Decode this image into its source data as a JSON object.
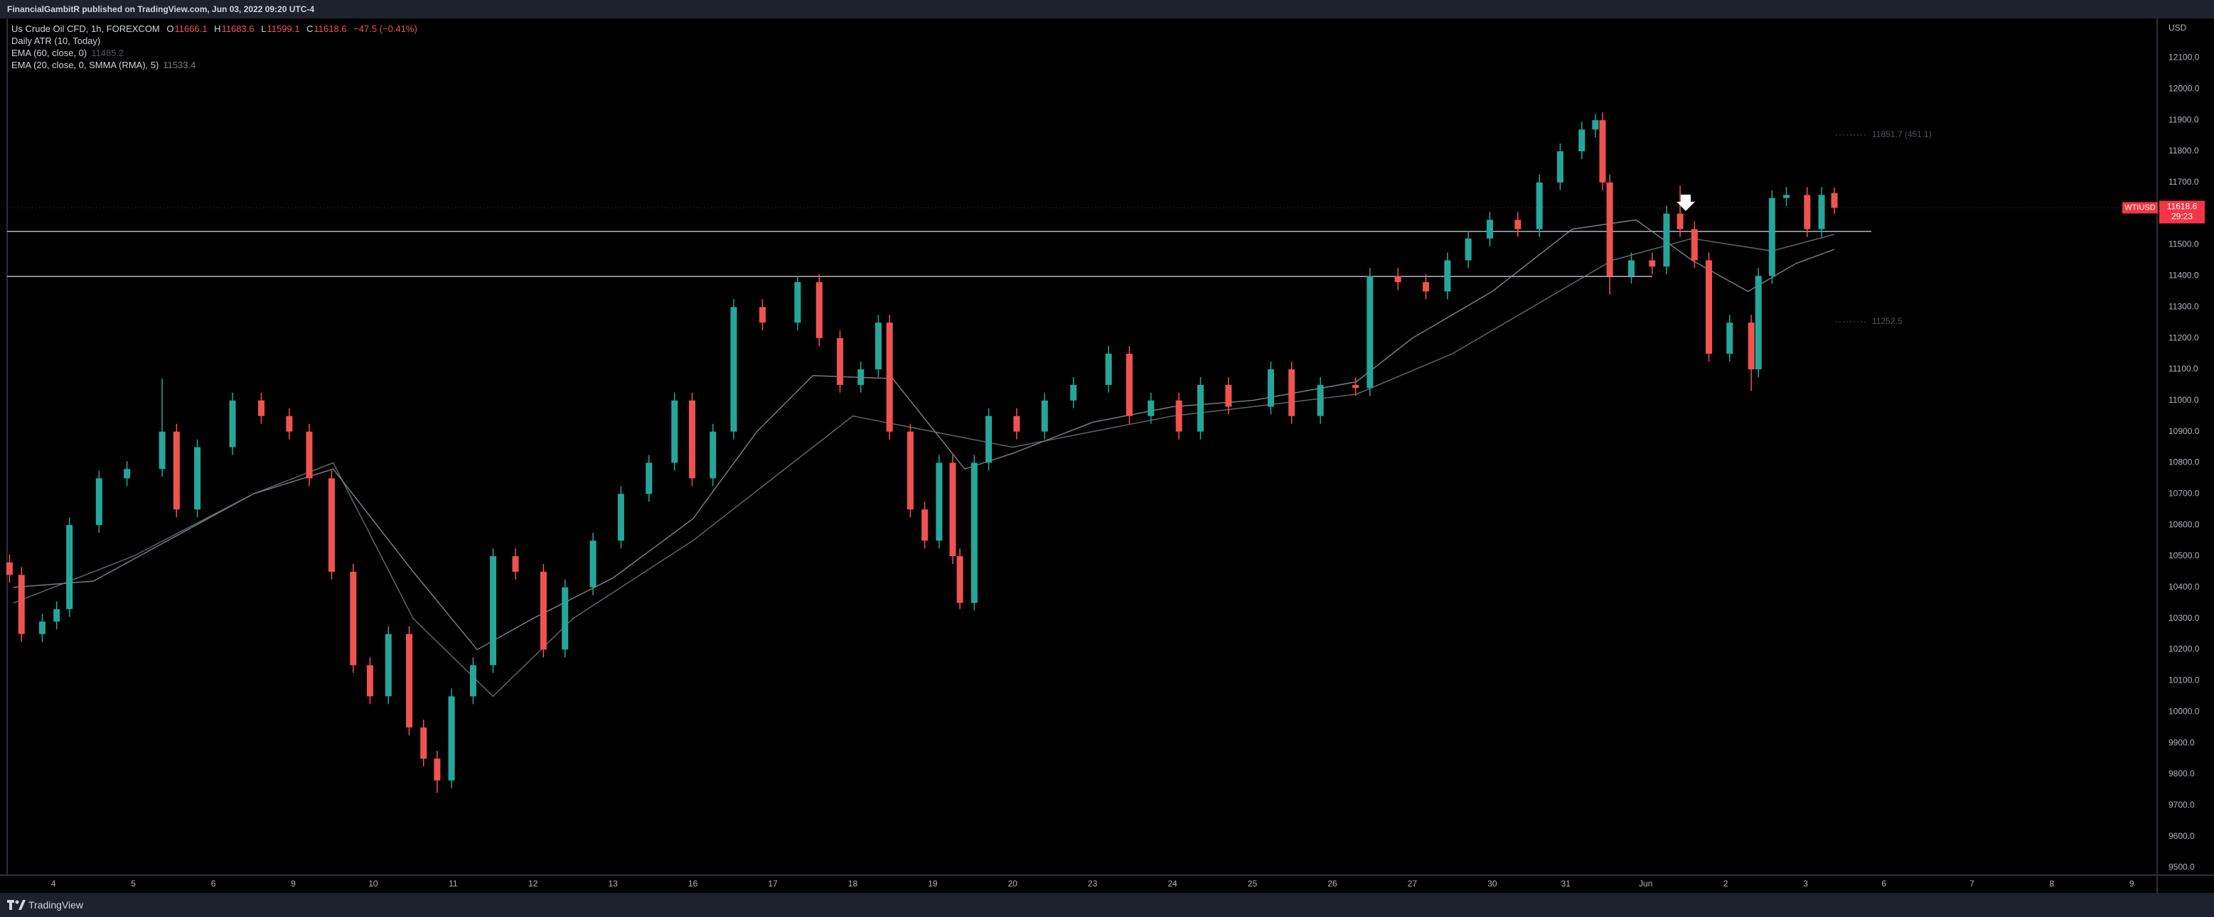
{
  "top_bar": {
    "text": "FinancialGambitR published on TradingView.com, Jun 03, 2022 09:20 UTC-4"
  },
  "bottom_bar": {
    "brand": "TradingView"
  },
  "chart_data": {
    "type": "candlestick",
    "title": "Us Crude Oil CFD, 1h, FOREXCOM",
    "ohlc": [
      {
        "label": "O",
        "value": 11666.1
      },
      {
        "label": "H",
        "value": 11683.6
      },
      {
        "label": "L",
        "value": 11599.1
      },
      {
        "label": "C",
        "value": 11618.6
      }
    ],
    "change": "−47.5 (−0.41%)",
    "indicator": "Daily ATR (10, Today)",
    "atr_levels": [
      "11851.7 (451.1)",
      "11252.5"
    ],
    "currency": "USD",
    "symbol": "WTIUSD",
    "last_price": 11618.6,
    "countdown": "29:23",
    "up_color": "#26a69a",
    "down_color": "#ef5350",
    "x": [
      -0.55,
      -0.4,
      -0.14,
      0.04,
      0.2,
      0.57,
      0.92,
      1.36,
      1.54,
      1.8,
      2.24,
      2.6,
      2.95,
      3.2,
      3.48,
      3.75,
      3.96,
      4.19,
      4.45,
      4.63,
      4.8,
      4.98,
      5.25,
      5.5,
      5.78,
      6.13,
      6.4,
      6.75,
      7.1,
      7.45,
      7.77,
      7.99,
      8.25,
      8.51,
      8.87,
      9.31,
      9.58,
      9.84,
      10.1,
      10.32,
      10.46,
      10.72,
      10.9,
      11.08,
      11.25,
      11.34,
      11.52,
      11.7,
      12.05,
      12.4,
      12.76,
      13.2,
      13.46,
      13.73,
      14.08,
      14.35,
      14.7,
      15.23,
      15.49,
      15.85,
      16.29,
      16.47,
      16.82,
      17.17,
      17.44,
      17.7,
      17.97,
      18.32,
      18.59,
      18.85,
      19.12,
      19.29,
      19.38,
      19.47,
      19.74,
      20.0,
      20.18,
      20.35,
      20.53,
      20.71,
      20.97,
      21.24,
      21.33,
      21.5,
      21.68,
      21.94,
      22.12,
      22.28
    ],
    "open": [
      10480,
      10440,
      10250,
      10290,
      10330,
      10600,
      10750,
      10780,
      10900,
      10650,
      10850,
      11000,
      10950,
      10900,
      10750,
      10450,
      10150,
      10050,
      10250,
      9950,
      9850,
      9780,
      10050,
      10150,
      10500,
      10450,
      10200,
      10400,
      10550,
      10700,
      10800,
      11000,
      10750,
      10900,
      11300,
      11250,
      11380,
      11200,
      11050,
      11100,
      11250,
      10900,
      10650,
      10550,
      10800,
      10500,
      10350,
      10800,
      10950,
      10900,
      11000,
      11050,
      11150,
      10950,
      11000,
      10900,
      11050,
      10980,
      11100,
      10950,
      11050,
      11040,
      11400,
      11380,
      11350,
      11450,
      11520,
      11580,
      11550,
      11700,
      11800,
      11870,
      11900,
      11700,
      11400,
      11450,
      11430,
      11600,
      11550,
      11450,
      11150,
      11250,
      11100,
      11400,
      11650,
      11660,
      11550,
      11666.1
    ],
    "high": [
      10505,
      10465,
      10315,
      10355,
      10625,
      10775,
      10805,
      11070,
      10925,
      10875,
      11025,
      11025,
      10975,
      10925,
      10775,
      10475,
      10175,
      10275,
      10275,
      9975,
      9875,
      10075,
      10175,
      10525,
      10525,
      10475,
      10425,
      10575,
      10725,
      10825,
      11025,
      11025,
      10925,
      11325,
      11325,
      11400,
      11405,
      11225,
      11125,
      11275,
      11275,
      10925,
      10675,
      10825,
      10825,
      10525,
      10825,
      10975,
      10975,
      11025,
      11075,
      11175,
      11175,
      11025,
      11025,
      11075,
      11075,
      11125,
      11125,
      11075,
      11075,
      11425,
      11425,
      11405,
      11475,
      11545,
      11605,
      11605,
      11725,
      11825,
      11895,
      11920,
      11925,
      11725,
      11475,
      11475,
      11625,
      11690,
      11575,
      11475,
      11275,
      11275,
      11425,
      11675,
      11685,
      11685,
      11685,
      11683.6
    ],
    "low": [
      10415,
      10225,
      10225,
      10265,
      10305,
      10575,
      10725,
      10755,
      10625,
      10625,
      10825,
      10925,
      10875,
      10725,
      10425,
      10125,
      10025,
      10025,
      9925,
      9825,
      9740,
      9755,
      10025,
      10125,
      10425,
      10175,
      10175,
      10375,
      10525,
      10675,
      10775,
      10725,
      10725,
      10875,
      11225,
      11225,
      11175,
      11025,
      11025,
      11075,
      10875,
      10625,
      10525,
      10525,
      10475,
      10330,
      10325,
      10775,
      10875,
      10875,
      10975,
      11025,
      10925,
      10925,
      10875,
      10875,
      10955,
      10955,
      10925,
      10925,
      11015,
      11015,
      11355,
      11325,
      11325,
      11425,
      11495,
      11525,
      11525,
      11675,
      11775,
      11845,
      11675,
      11340,
      11375,
      11405,
      11405,
      11525,
      11425,
      11125,
      11125,
      11030,
      11075,
      11375,
      11625,
      11525,
      11525,
      11599.1
    ],
    "close": [
      10440,
      10250,
      10290,
      10330,
      10600,
      10750,
      10780,
      10900,
      10650,
      10850,
      11000,
      10950,
      10900,
      10750,
      10450,
      10150,
      10050,
      10250,
      9950,
      9850,
      9780,
      10050,
      10150,
      10500,
      10450,
      10200,
      10400,
      10550,
      10700,
      10800,
      11000,
      10750,
      10900,
      11300,
      11250,
      11380,
      11200,
      11050,
      11100,
      11250,
      10900,
      10650,
      10550,
      10800,
      10500,
      10350,
      10800,
      10950,
      10900,
      11000,
      11050,
      11150,
      10950,
      11000,
      10900,
      11050,
      10980,
      11100,
      10950,
      11050,
      11040,
      11400,
      11380,
      11350,
      11450,
      11520,
      11580,
      11550,
      11700,
      11800,
      11870,
      11900,
      11700,
      11400,
      11450,
      11430,
      11600,
      11550,
      11450,
      11150,
      11250,
      11100,
      11400,
      11650,
      11660,
      11550,
      11660,
      11618.6
    ],
    "series": [
      {
        "name": "EMA (60, close, 0)",
        "color": "#9598a1",
        "last": 11485.2,
        "x": [
          -0.5,
          0.5,
          1.5,
          2.5,
          3.5,
          4.5,
          5.3,
          6,
          7,
          8,
          8.8,
          9.5,
          10.5,
          11.4,
          12,
          13,
          14,
          15,
          16.3,
          17,
          18,
          19,
          19.8,
          20.5,
          21.2,
          21.8,
          22.28
        ],
        "values": [
          10400,
          10420,
          10560,
          10700,
          10780,
          10450,
          10200,
          10300,
          10430,
          10620,
          10900,
          11080,
          11070,
          10780,
          10830,
          10930,
          10980,
          11000,
          11060,
          11200,
          11350,
          11550,
          11580,
          11450,
          11350,
          11440,
          11485.2
        ]
      },
      {
        "name": "EMA (20, close, 0, SMMA (RMA), 5)",
        "color": "#787b86",
        "last": 11533.4,
        "x": [
          -0.5,
          1,
          2.5,
          3.5,
          4.5,
          5.5,
          6.5,
          8,
          9,
          10,
          11,
          12,
          13,
          14,
          15,
          16.3,
          17.5,
          18.5,
          19.5,
          20.5,
          21.5,
          22.28
        ],
        "values": [
          10350,
          10500,
          10700,
          10800,
          10300,
          10050,
          10300,
          10550,
          10750,
          10950,
          10900,
          10850,
          10900,
          10950,
          10980,
          11020,
          11150,
          11300,
          11450,
          11520,
          11480,
          11533.4
        ]
      }
    ],
    "xlim": [
      -0.58,
      26.3
    ],
    "xticks": [
      {
        "value": 0,
        "label": "4"
      },
      {
        "value": 1,
        "label": "5"
      },
      {
        "value": 2,
        "label": "6"
      },
      {
        "value": 3,
        "label": "9"
      },
      {
        "value": 4,
        "label": "10"
      },
      {
        "value": 5,
        "label": "11"
      },
      {
        "value": 6,
        "label": "12"
      },
      {
        "value": 7,
        "label": "13"
      },
      {
        "value": 8,
        "label": "16"
      },
      {
        "value": 9,
        "label": "17"
      },
      {
        "value": 10,
        "label": "18"
      },
      {
        "value": 11,
        "label": "19"
      },
      {
        "value": 12,
        "label": "20"
      },
      {
        "value": 13,
        "label": "23"
      },
      {
        "value": 14,
        "label": "24"
      },
      {
        "value": 15,
        "label": "25"
      },
      {
        "value": 16,
        "label": "26"
      },
      {
        "value": 17,
        "label": "27"
      },
      {
        "value": 18,
        "label": "30"
      },
      {
        "value": 18.92,
        "label": "31"
      },
      {
        "value": 19.92,
        "label": "Jun"
      },
      {
        "value": 20.92,
        "label": "2"
      },
      {
        "value": 21.92,
        "label": "3"
      },
      {
        "value": 22.9,
        "label": "6"
      },
      {
        "value": 24,
        "label": "7"
      },
      {
        "value": 25,
        "label": "8"
      },
      {
        "value": 26,
        "label": "9"
      }
    ],
    "ylim": [
      9476,
      12222
    ],
    "yticks": [
      {
        "value": 12100,
        "label": "12100.0"
      },
      {
        "value": 12000,
        "label": "12000.0"
      },
      {
        "value": 11900,
        "label": "11900.0"
      },
      {
        "value": 11800,
        "label": "11800.0"
      },
      {
        "value": 11700,
        "label": "11700.0"
      },
      {
        "value": 11600,
        "label": "11600.0"
      },
      {
        "value": 11500,
        "label": "11500.0"
      },
      {
        "value": 11400,
        "label": "11400.0"
      },
      {
        "value": 11300,
        "label": "11300.0"
      },
      {
        "value": 11200,
        "label": "11200.0"
      },
      {
        "value": 11100,
        "label": "11100.0"
      },
      {
        "value": 11000,
        "label": "11000.0"
      },
      {
        "value": 10900,
        "label": "10900.0"
      },
      {
        "value": 10800,
        "label": "10800.0"
      },
      {
        "value": 10700,
        "label": "10700.0"
      },
      {
        "value": 10600,
        "label": "10600.0"
      },
      {
        "value": 10500,
        "label": "10500.0"
      },
      {
        "value": 10400,
        "label": "10400.0"
      },
      {
        "value": 10300,
        "label": "10300.0"
      },
      {
        "value": 10200,
        "label": "10200.0"
      },
      {
        "value": 10100,
        "label": "10100.0"
      },
      {
        "value": 10000,
        "label": "10000.0"
      },
      {
        "value": 9900,
        "label": "9900.0"
      },
      {
        "value": 9800,
        "label": "9800.0"
      },
      {
        "value": 9700,
        "label": "9700.0"
      },
      {
        "value": 9600,
        "label": "9600.0"
      },
      {
        "value": 9500,
        "label": "9500.0"
      }
    ],
    "grid": false
  }
}
